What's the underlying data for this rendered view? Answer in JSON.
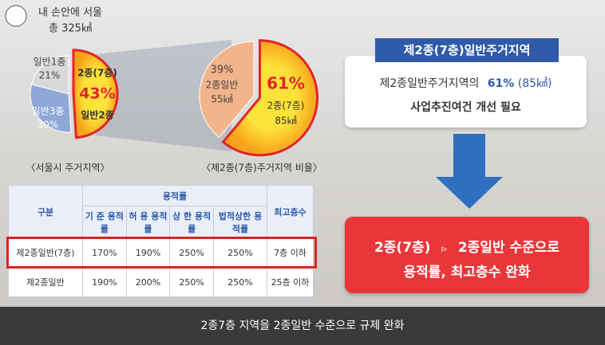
{
  "header": {
    "brand": "내 손안에 서울",
    "total": "총 325㎢"
  },
  "pie_seoul": {
    "caption": "〈서울시 주거지역〉",
    "slices": [
      {
        "name": "일반2종",
        "value": 49,
        "color": "#f7a21b"
      },
      {
        "name": "일반3종",
        "value": 30,
        "value_label": "30%",
        "color": "#8fa8d8"
      },
      {
        "name": "일반1종",
        "value": 21,
        "value_label": "21%",
        "color": "#d9d9d9"
      }
    ],
    "highlight": {
      "name": "2종(7층)",
      "value_label": "43%"
    }
  },
  "pie_type2": {
    "caption": "〈제2종(7층)주거지역 비율〉",
    "slices": [
      {
        "name": "2종(7층)",
        "value": 61,
        "value_label": "61%",
        "area": "85㎢",
        "color": "#f7a21b"
      },
      {
        "name": "2종일반",
        "value": 39,
        "value_label": "39%",
        "area": "55㎢",
        "color": "#f2b48a"
      }
    ]
  },
  "table": {
    "header": [
      "구분",
      "용적률",
      "최고층수"
    ],
    "subheader": [
      "기 준 용적률",
      "허 용 용적률",
      "상 한 용적률",
      "법적상한 용적률"
    ],
    "rows": [
      [
        "제2종일반(7층)",
        "170%",
        "190%",
        "250%",
        "250%",
        "7층 이하"
      ],
      [
        "제2종일반",
        "190%",
        "200%",
        "250%",
        "250%",
        "25층 이하"
      ]
    ]
  },
  "info_box": {
    "title": "제2종(7층)일반주거지역",
    "line1": "제2종일반주거지역의",
    "share": "61%",
    "area": "(85㎢)",
    "line2": "사업추진여건 개선 필요"
  },
  "result_box": {
    "from": "2종(7층)",
    "arrow": "▹",
    "to": "2종일반 수준으로",
    "line2": "용적률, 최고층수 완화"
  },
  "footer": "2종7층 지역을 2종일반 수준으로 규제 완화"
}
